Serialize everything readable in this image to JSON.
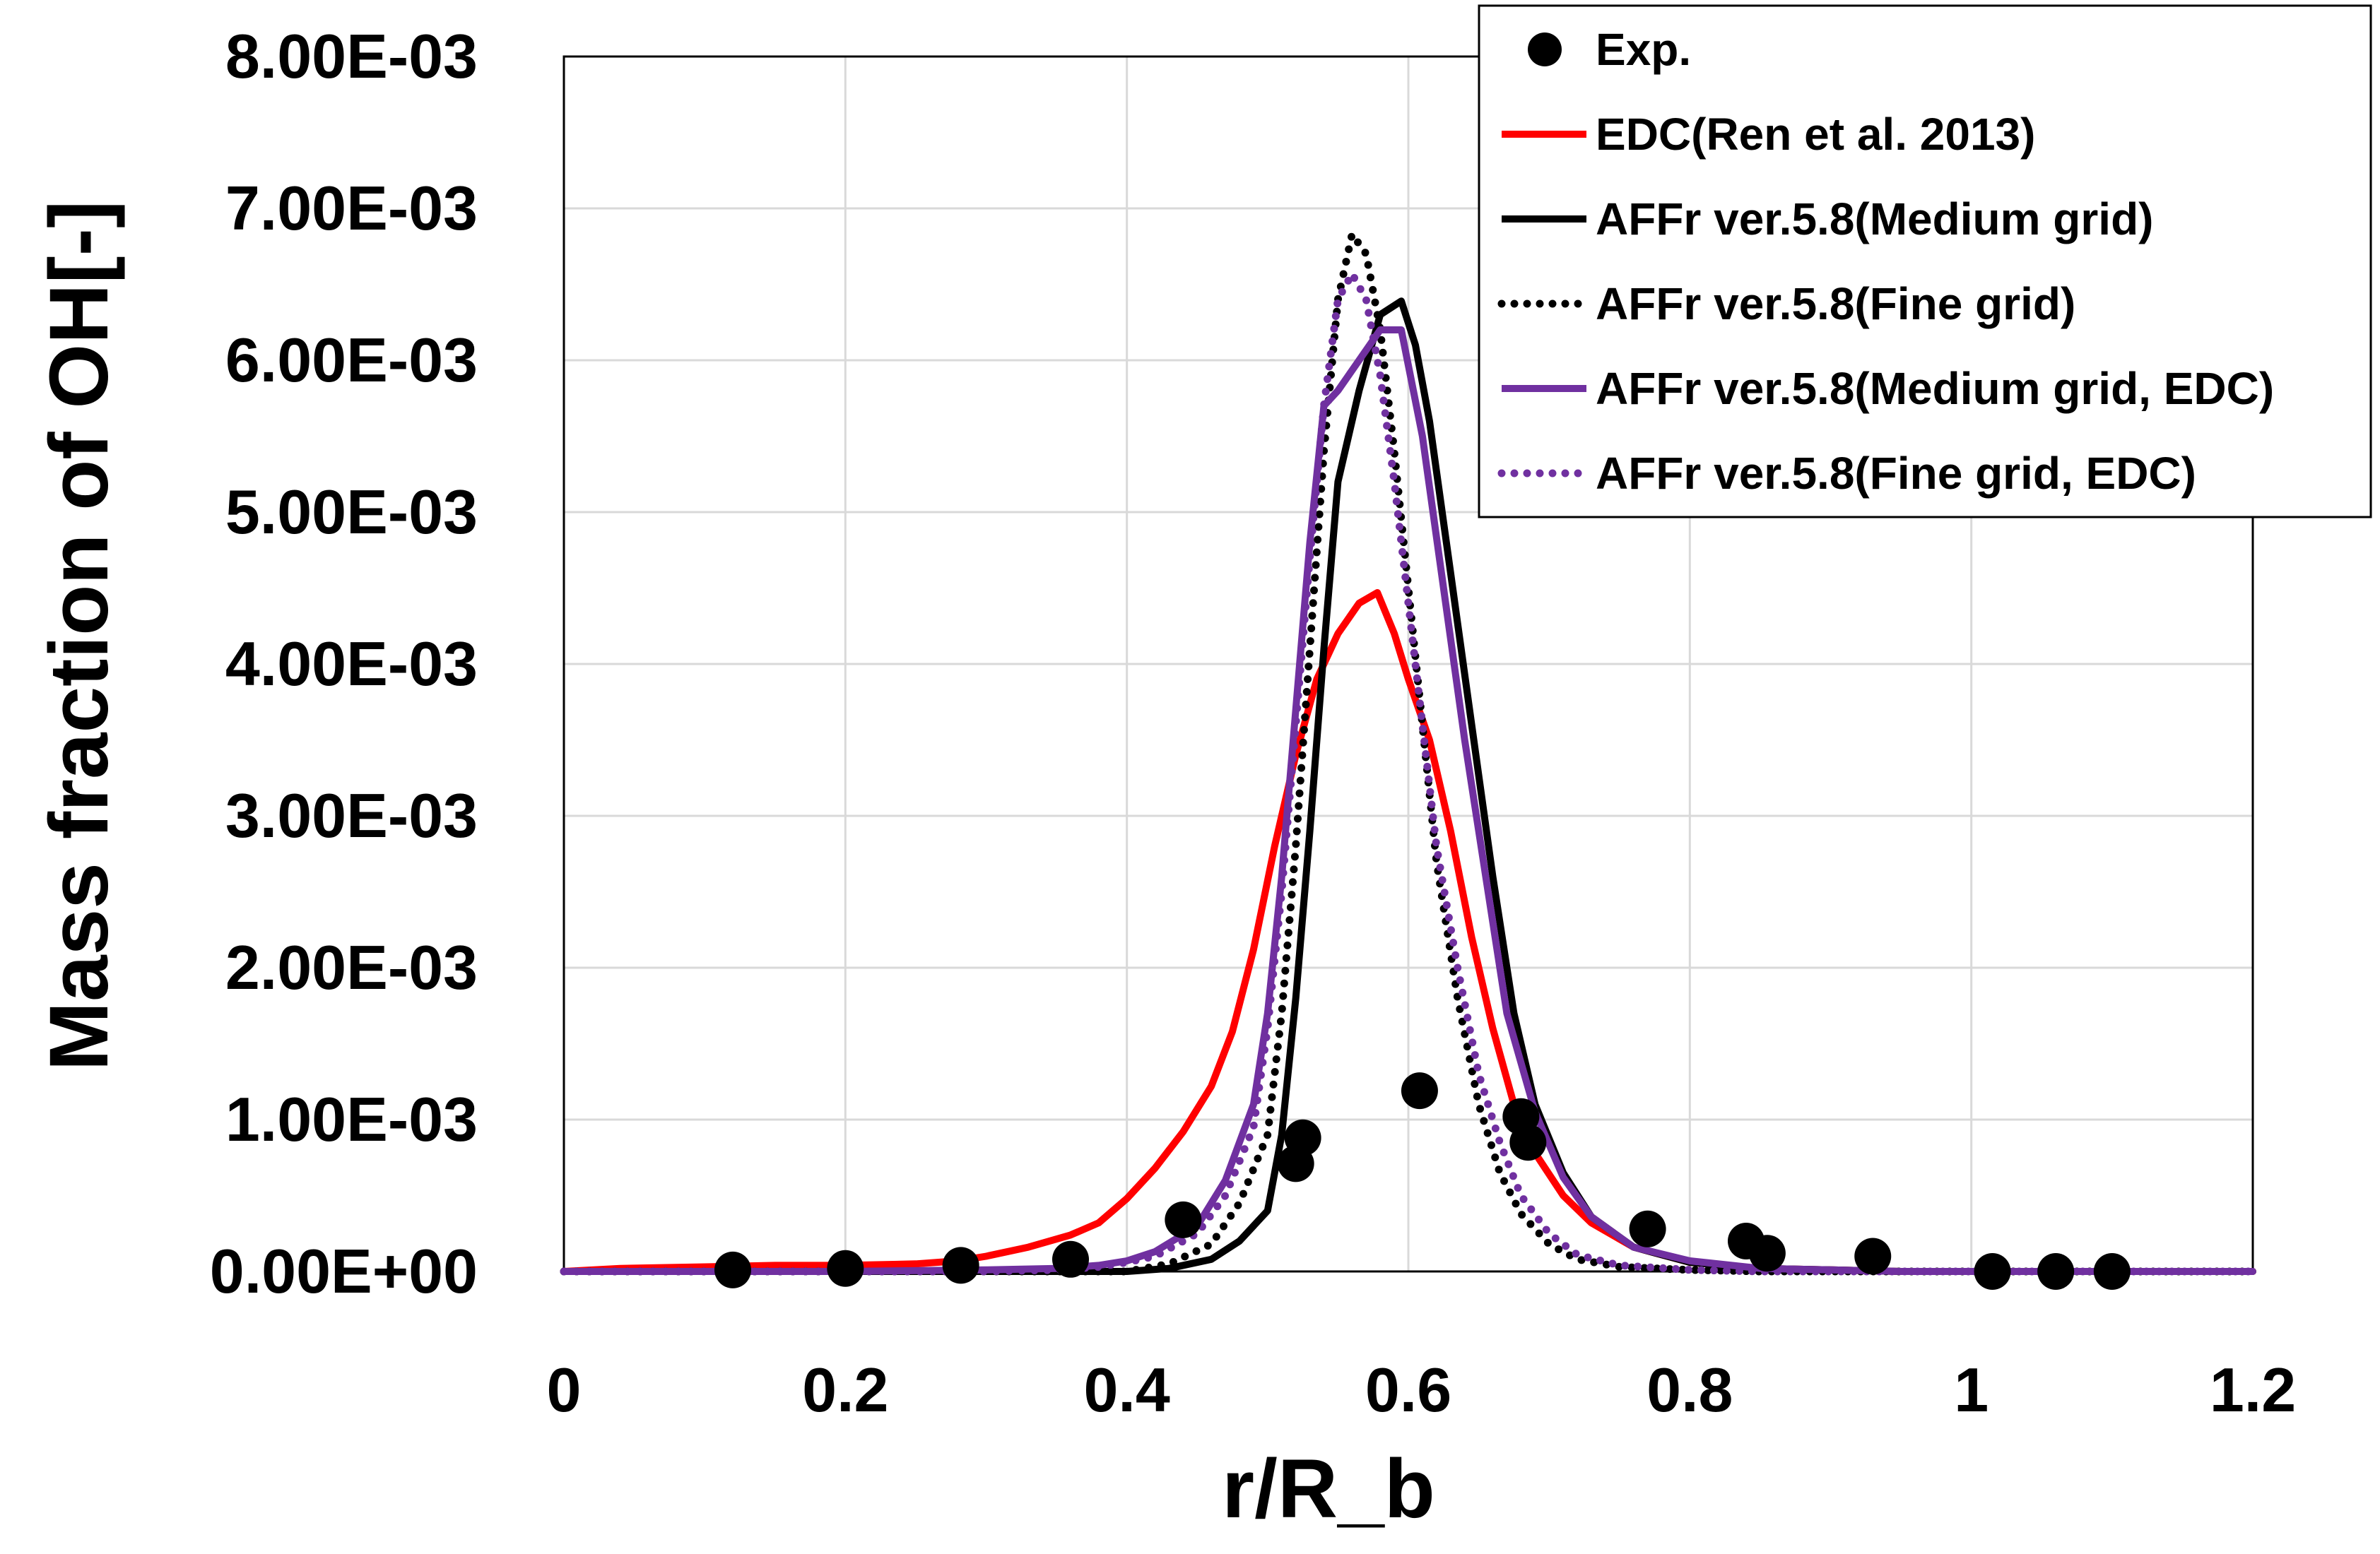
{
  "chart_data": {
    "type": "line",
    "title": "",
    "xlabel": "r/R_b",
    "ylabel": "Mass fraction of OH[-]",
    "xlim": [
      0,
      1.2
    ],
    "ylim": [
      0,
      0.008
    ],
    "grid": true,
    "legend_position": "top-right",
    "x_ticks": [
      "0",
      "0.2",
      "0.4",
      "0.6",
      "0.8",
      "1",
      "1.2"
    ],
    "x_tick_values": [
      0,
      0.2,
      0.4,
      0.6,
      0.8,
      1.0,
      1.2
    ],
    "y_ticks": [
      "0.00E+00",
      "1.00E-03",
      "2.00E-03",
      "3.00E-03",
      "4.00E-03",
      "5.00E-03",
      "6.00E-03",
      "7.00E-03",
      "8.00E-03"
    ],
    "y_tick_values": [
      0,
      0.001,
      0.002,
      0.003,
      0.004,
      0.005,
      0.006,
      0.007,
      0.008
    ],
    "series": [
      {
        "name": "Exp.",
        "kind": "scatter",
        "color": "#000000",
        "x": [
          0.12,
          0.2,
          0.282,
          0.36,
          0.44,
          0.52,
          0.525,
          0.608,
          0.68,
          0.685,
          0.77,
          0.84,
          0.855,
          0.93,
          1.015,
          1.06,
          1.1
        ],
        "y": [
          1e-05,
          2e-05,
          4e-05,
          8e-05,
          0.00034,
          0.00071,
          0.00088,
          0.00119,
          0.00102,
          0.00085,
          0.00028,
          0.0002,
          0.00012,
          0.0001,
          0.0,
          0.0,
          0.0
        ]
      },
      {
        "name": "EDC(Ren et al. 2013)",
        "kind": "line",
        "style": "solid",
        "color": "#ff0000",
        "x": [
          0,
          0.04,
          0.1,
          0.15,
          0.2,
          0.25,
          0.28,
          0.3,
          0.33,
          0.36,
          0.38,
          0.4,
          0.42,
          0.44,
          0.46,
          0.475,
          0.49,
          0.505,
          0.52,
          0.535,
          0.55,
          0.565,
          0.578,
          0.59,
          0.6,
          0.615,
          0.63,
          0.645,
          0.66,
          0.675,
          0.69,
          0.71,
          0.73,
          0.76,
          0.8,
          0.85,
          0.9,
          0.95,
          1.0,
          1.05,
          1.1,
          1.15,
          1.2
        ],
        "y": [
          0,
          2e-05,
          3e-05,
          4e-05,
          4e-05,
          5e-05,
          7e-05,
          0.0001,
          0.00016,
          0.00024,
          0.00032,
          0.00048,
          0.00068,
          0.00092,
          0.00122,
          0.00158,
          0.00212,
          0.0028,
          0.0034,
          0.0039,
          0.0042,
          0.0044,
          0.00447,
          0.0042,
          0.0039,
          0.0035,
          0.0029,
          0.0022,
          0.0016,
          0.0011,
          0.00078,
          0.0005,
          0.00032,
          0.00016,
          6e-05,
          2e-05,
          1e-05,
          0,
          0,
          0,
          0,
          0,
          0
        ]
      },
      {
        "name": "AFFr ver.5.8(Medium grid)",
        "kind": "line",
        "style": "solid",
        "color": "#000000",
        "x": [
          0,
          0.1,
          0.2,
          0.3,
          0.35,
          0.4,
          0.43,
          0.46,
          0.48,
          0.5,
          0.51,
          0.52,
          0.53,
          0.54,
          0.55,
          0.565,
          0.58,
          0.595,
          0.605,
          0.615,
          0.63,
          0.645,
          0.66,
          0.675,
          0.69,
          0.71,
          0.73,
          0.76,
          0.8,
          0.85,
          0.9,
          0.95,
          1.0,
          1.05,
          1.1,
          1.15,
          1.2
        ],
        "y": [
          0,
          0,
          0,
          0,
          0,
          0,
          2e-05,
          8e-05,
          0.0002,
          0.0004,
          0.0009,
          0.0018,
          0.0029,
          0.0041,
          0.0052,
          0.0058,
          0.0063,
          0.00639,
          0.0061,
          0.0056,
          0.0046,
          0.0036,
          0.0026,
          0.0017,
          0.0011,
          0.00065,
          0.00036,
          0.00016,
          6e-05,
          2e-05,
          1e-05,
          0,
          0,
          0,
          0,
          0,
          0
        ]
      },
      {
        "name": "AFFr ver.5.8(Fine grid)",
        "kind": "line",
        "style": "dotted",
        "color": "#000000",
        "x": [
          0,
          0.1,
          0.2,
          0.3,
          0.35,
          0.4,
          0.43,
          0.46,
          0.48,
          0.5,
          0.51,
          0.52,
          0.53,
          0.54,
          0.55,
          0.56,
          0.57,
          0.58,
          0.59,
          0.6,
          0.61,
          0.62,
          0.635,
          0.65,
          0.665,
          0.68,
          0.7,
          0.72,
          0.75,
          0.8,
          0.85,
          0.9,
          1.0,
          1.1,
          1.2
        ],
        "y": [
          0,
          0,
          0,
          0,
          0,
          0,
          5e-05,
          0.00018,
          0.00045,
          0.0009,
          0.0017,
          0.0028,
          0.0041,
          0.0054,
          0.0064,
          0.00683,
          0.0067,
          0.0062,
          0.0054,
          0.0045,
          0.0036,
          0.0027,
          0.0018,
          0.0011,
          0.00065,
          0.00038,
          0.00018,
          8e-05,
          3e-05,
          1e-05,
          0,
          0,
          0,
          0,
          0
        ]
      },
      {
        "name": "AFFr ver.5.8(Medium grid, EDC)",
        "kind": "line",
        "style": "solid",
        "color": "#7030a0",
        "x": [
          0,
          0.1,
          0.2,
          0.3,
          0.35,
          0.38,
          0.4,
          0.42,
          0.45,
          0.47,
          0.49,
          0.5,
          0.51,
          0.52,
          0.53,
          0.54,
          0.55,
          0.565,
          0.58,
          0.595,
          0.61,
          0.625,
          0.64,
          0.655,
          0.67,
          0.69,
          0.71,
          0.73,
          0.76,
          0.8,
          0.85,
          0.9,
          0.95,
          1.0,
          1.05,
          1.1,
          1.15,
          1.2
        ],
        "y": [
          0,
          0,
          0,
          1e-05,
          2e-05,
          4e-05,
          7e-05,
          0.00013,
          0.0003,
          0.0006,
          0.0011,
          0.0017,
          0.0026,
          0.0037,
          0.0048,
          0.0057,
          0.0058,
          0.006,
          0.0062,
          0.0062,
          0.0055,
          0.0045,
          0.0035,
          0.0026,
          0.0017,
          0.00105,
          0.00062,
          0.00036,
          0.00016,
          7e-05,
          2e-05,
          1e-05,
          0,
          0,
          0,
          0,
          0,
          0
        ]
      },
      {
        "name": "AFFr ver.5.8(Fine grid, EDC)",
        "kind": "line",
        "style": "dotted",
        "color": "#7030a0",
        "x": [
          0,
          0.1,
          0.2,
          0.3,
          0.35,
          0.38,
          0.4,
          0.42,
          0.45,
          0.47,
          0.49,
          0.5,
          0.51,
          0.52,
          0.53,
          0.54,
          0.55,
          0.56,
          0.57,
          0.58,
          0.59,
          0.6,
          0.61,
          0.62,
          0.635,
          0.65,
          0.665,
          0.68,
          0.7,
          0.72,
          0.75,
          0.8,
          0.85,
          0.9,
          1.0,
          1.1,
          1.2
        ],
        "y": [
          0,
          0,
          0,
          0,
          1e-05,
          3e-05,
          6e-05,
          0.0001,
          0.00025,
          0.0005,
          0.00095,
          0.0016,
          0.0025,
          0.0036,
          0.0047,
          0.0057,
          0.0064,
          0.00657,
          0.0064,
          0.0059,
          0.0052,
          0.0044,
          0.0036,
          0.0028,
          0.002,
          0.0013,
          0.00085,
          0.0005,
          0.00025,
          0.00011,
          4e-05,
          1e-05,
          0,
          0,
          0,
          0,
          0
        ]
      }
    ]
  }
}
